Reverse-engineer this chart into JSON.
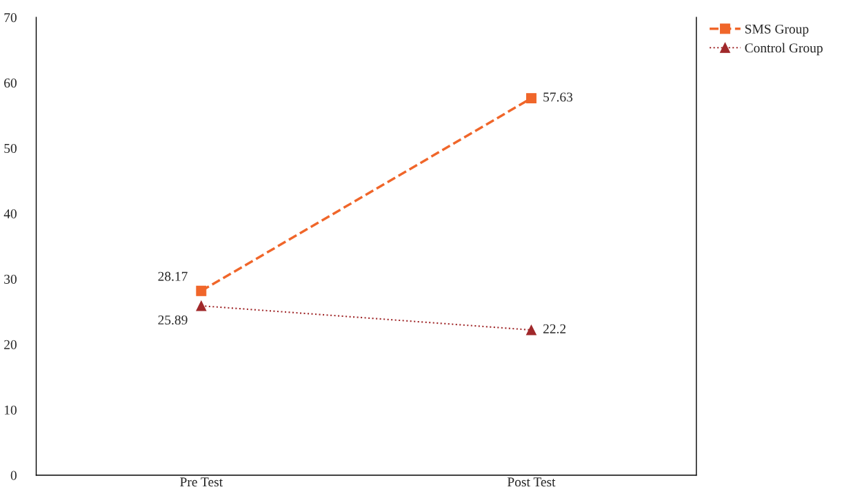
{
  "chart_data": {
    "type": "line",
    "categories": [
      "Pre Test",
      "Post Test"
    ],
    "series": [
      {
        "name": "SMS Group",
        "color": "#f0662a",
        "values": [
          28.17,
          57.63
        ],
        "marker": "square",
        "line_style": "dashed"
      },
      {
        "name": "Control Group",
        "color": "#a0282a",
        "values": [
          25.89,
          22.2
        ],
        "marker": "triangle",
        "line_style": "dotted"
      }
    ],
    "ylim": [
      0,
      70
    ],
    "yticks": [
      0,
      10,
      20,
      30,
      40,
      50,
      60,
      70
    ],
    "data_labels": true,
    "grid": false,
    "legend": "top right"
  }
}
